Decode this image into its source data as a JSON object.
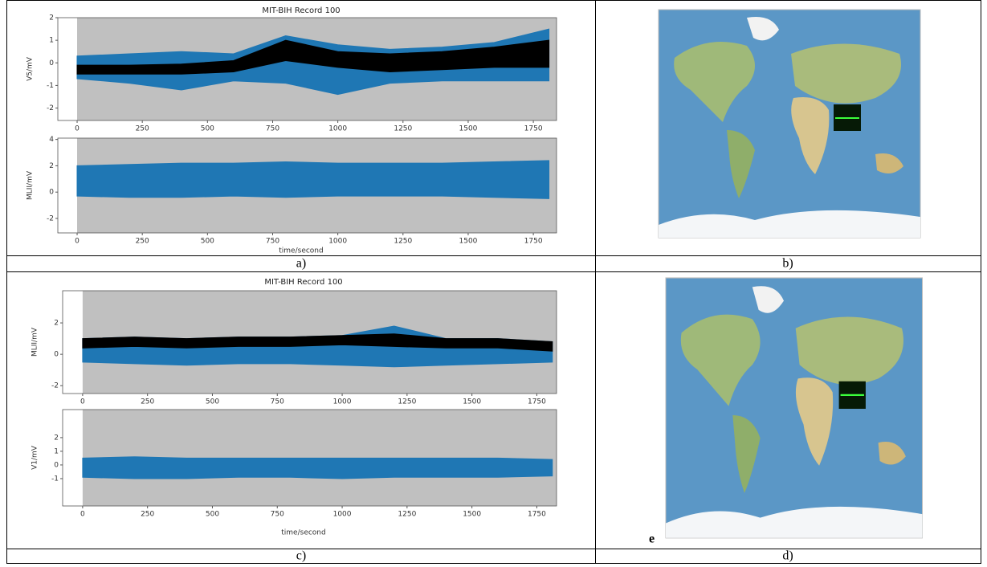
{
  "chart_data": [
    {
      "type": "area",
      "title": "MIT-BIH Record 100",
      "xlabel": "time/second",
      "x": [
        0,
        200,
        400,
        600,
        800,
        1000,
        1200,
        1400,
        1600,
        1810
      ],
      "xlim": [
        -74,
        1839
      ],
      "xticks": [
        0,
        250,
        500,
        750,
        1000,
        1250,
        1500,
        1750
      ],
      "subplots": [
        {
          "ylabel": "V5/mV",
          "ylim": [
            -2.55,
            2.0
          ],
          "yticks": [
            -2,
            -1,
            0,
            1,
            2
          ],
          "series": [
            {
              "color": "#1f77b4",
              "max": [
                0.3,
                0.4,
                0.5,
                0.4,
                1.2,
                0.8,
                0.6,
                0.7,
                0.9,
                1.5
              ],
              "min": [
                -0.7,
                -0.9,
                -1.2,
                -0.8,
                -0.9,
                -1.4,
                -0.9,
                -0.8,
                -0.8,
                -0.8
              ]
            },
            {
              "color": "#000000",
              "max": [
                -0.1,
                -0.1,
                -0.05,
                0.1,
                1.0,
                0.5,
                0.4,
                0.5,
                0.7,
                1.0
              ],
              "min": [
                -0.5,
                -0.5,
                -0.5,
                -0.4,
                0.1,
                -0.2,
                -0.4,
                -0.3,
                -0.2,
                -0.2
              ]
            }
          ]
        },
        {
          "ylabel": "MLII/mV",
          "ylim": [
            -3.1,
            4.1
          ],
          "yticks": [
            -2,
            0,
            2,
            4
          ],
          "series": [
            {
              "color": "#1f77b4",
              "max": [
                2.0,
                2.1,
                2.2,
                2.2,
                2.3,
                2.2,
                2.2,
                2.2,
                2.3,
                2.4
              ],
              "min": [
                -0.3,
                -0.4,
                -0.4,
                -0.3,
                -0.4,
                -0.3,
                -0.3,
                -0.3,
                -0.4,
                -0.5
              ]
            }
          ]
        }
      ]
    },
    {
      "type": "area",
      "title": "MIT-BIH Record 100",
      "xlabel": "time/second",
      "x": [
        0,
        200,
        400,
        600,
        800,
        1000,
        1200,
        1400,
        1600,
        1810
      ],
      "xlim": [
        -77,
        1826
      ],
      "xticks": [
        0,
        250,
        500,
        750,
        1000,
        1250,
        1500,
        1750
      ],
      "subplots": [
        {
          "ylabel": "MLII/mV",
          "ylim": [
            -2.5,
            4.05
          ],
          "yticks": [
            -2,
            0,
            2
          ],
          "series": [
            {
              "color": "#1f77b4",
              "max": [
                1.0,
                1.1,
                1.0,
                1.1,
                1.1,
                1.2,
                1.8,
                1.0,
                1.0,
                0.8
              ],
              "min": [
                -0.5,
                -0.6,
                -0.7,
                -0.6,
                -0.6,
                -0.7,
                -0.8,
                -0.7,
                -0.6,
                -0.5
              ]
            },
            {
              "color": "#000000",
              "max": [
                1.0,
                1.1,
                1.0,
                1.1,
                1.1,
                1.2,
                1.3,
                1.0,
                1.0,
                0.8
              ],
              "min": [
                0.4,
                0.5,
                0.4,
                0.5,
                0.5,
                0.6,
                0.5,
                0.4,
                0.4,
                0.2
              ]
            }
          ]
        },
        {
          "ylabel": "V1/mV",
          "ylim": [
            -3.0,
            4.05
          ],
          "yticks": [
            -1,
            0,
            1,
            2
          ],
          "series": [
            {
              "color": "#1f77b4",
              "max": [
                0.5,
                0.6,
                0.5,
                0.5,
                0.5,
                0.5,
                0.5,
                0.5,
                0.5,
                0.4
              ],
              "min": [
                -0.9,
                -1.0,
                -1.0,
                -0.9,
                -0.9,
                -1.0,
                -0.9,
                -0.9,
                -0.9,
                -0.8
              ]
            }
          ]
        }
      ]
    }
  ],
  "captions": [
    "a)",
    "b)",
    "c)",
    "d)"
  ],
  "map_label": "e"
}
